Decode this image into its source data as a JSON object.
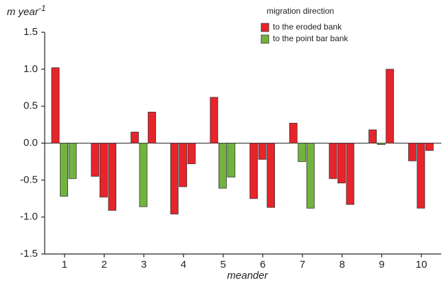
{
  "chart_data": {
    "type": "grouped-bar",
    "y_label": "m  year",
    "y_label_exponent": "-1",
    "x_label": "meander",
    "legend_title": "migration direction",
    "series": [
      {
        "name": "to the eroded bank",
        "color": "#e8242b"
      },
      {
        "name": "to the point bar bank",
        "color": "#72b33e"
      }
    ],
    "categories": [
      "1",
      "2",
      "3",
      "4",
      "5",
      "6",
      "7",
      "8",
      "9",
      "10"
    ],
    "values": [
      [
        1.02,
        -0.72,
        -0.48
      ],
      [
        -0.45,
        -0.73,
        -0.91
      ],
      [
        0.15,
        -0.86,
        0.42
      ],
      [
        -0.96,
        -0.59,
        -0.28
      ],
      [
        0.62,
        -0.61,
        -0.46
      ],
      [
        -0.75,
        -0.22,
        -0.87
      ],
      [
        0.27,
        -0.25,
        -0.88
      ],
      [
        -0.48,
        -0.54,
        -0.83
      ],
      [
        0.18,
        -0.02,
        1.0
      ],
      [
        -0.24,
        -0.88,
        -0.1
      ]
    ],
    "bar_colors": [
      [
        "#e8242b",
        "#72b33e",
        "#72b33e"
      ],
      [
        "#e8242b",
        "#e8242b",
        "#e8242b"
      ],
      [
        "#e8242b",
        "#72b33e",
        "#e8242b"
      ],
      [
        "#e8242b",
        "#e8242b",
        "#e8242b"
      ],
      [
        "#e8242b",
        "#72b33e",
        "#72b33e"
      ],
      [
        "#e8242b",
        "#e8242b",
        "#e8242b"
      ],
      [
        "#e8242b",
        "#72b33e",
        "#72b33e"
      ],
      [
        "#e8242b",
        "#e8242b",
        "#e8242b"
      ],
      [
        "#e8242b",
        "#72b33e",
        "#e8242b"
      ],
      [
        "#e8242b",
        "#e8242b",
        "#e8242b"
      ]
    ],
    "ylim": [
      -1.5,
      1.5
    ],
    "yticks": [
      1.5,
      {
        "value": 1,
        "label": "1.0"
      },
      0.5,
      {
        "value": 0,
        "label": "0.0"
      },
      -0.5,
      {
        "value": -1,
        "label": "-1.0"
      },
      -1.5
    ]
  }
}
